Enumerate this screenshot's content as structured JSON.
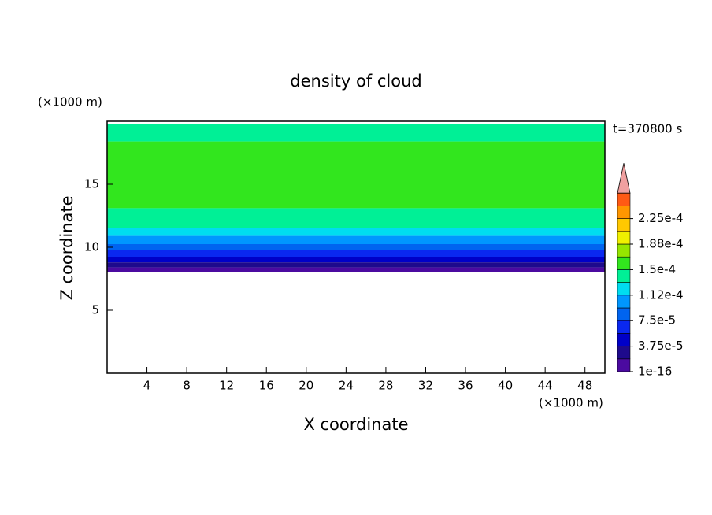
{
  "chart_data": {
    "type": "contour",
    "title": "density of cloud",
    "xlabel": "X coordinate",
    "ylabel": "Z coordinate",
    "x_unit": "(×1000 m)",
    "y_unit": "(×1000 m)",
    "annotation": "t=370800 s",
    "xlim": [
      0,
      50
    ],
    "ylim": [
      0,
      20
    ],
    "xticks": [
      4,
      8,
      12,
      16,
      20,
      24,
      28,
      32,
      36,
      40,
      44,
      48
    ],
    "yticks": [
      5,
      10,
      15
    ],
    "levels": [
      1e-16,
      1.875e-05,
      3.75e-05,
      5.625e-05,
      7.5e-05,
      9.375e-05,
      0.0001125,
      0.00013125,
      0.00015,
      0.00016875,
      0.0001875,
      0.00020625,
      0.000225,
      0.00024375,
      0.0002625
    ],
    "colors": [
      "#4b0aa0",
      "#1e0a8c",
      "#0000c8",
      "#0a28f0",
      "#0064f0",
      "#0096ff",
      "#00dcf0",
      "#00f096",
      "#32e61e",
      "#96e600",
      "#f0f000",
      "#ffc800",
      "#ff9600",
      "#ff5a14"
    ],
    "overflow_color": "#f0a0a0",
    "colorbar_ticks": [
      {
        "value": 1e-16,
        "label": "1e-16"
      },
      {
        "value": 3.75e-05,
        "label": "3.75e-5"
      },
      {
        "value": 7.5e-05,
        "label": "7.5e-5"
      },
      {
        "value": 0.0001125,
        "label": "1.12e-4"
      },
      {
        "value": 0.00015,
        "label": "1.5e-4"
      },
      {
        "value": 0.0001875,
        "label": "1.88e-4"
      },
      {
        "value": 0.000225,
        "label": "2.25e-4"
      }
    ],
    "bands": [
      {
        "z": [
          18.4,
          19.8
        ],
        "level": 7
      },
      {
        "z": [
          13.1,
          18.4
        ],
        "level": 8
      },
      {
        "z": [
          11.5,
          13.1
        ],
        "level": 7
      },
      {
        "z": [
          10.9,
          11.5
        ],
        "level": 6
      },
      {
        "z": [
          10.25,
          10.9
        ],
        "level": 5
      },
      {
        "z": [
          9.75,
          10.25
        ],
        "level": 4
      },
      {
        "z": [
          9.25,
          9.75
        ],
        "level": 3
      },
      {
        "z": [
          8.8,
          9.25
        ],
        "level": 2
      },
      {
        "z": [
          8.4,
          8.8
        ],
        "level": 1
      },
      {
        "z": [
          8.0,
          8.4
        ],
        "level": 0
      }
    ]
  }
}
